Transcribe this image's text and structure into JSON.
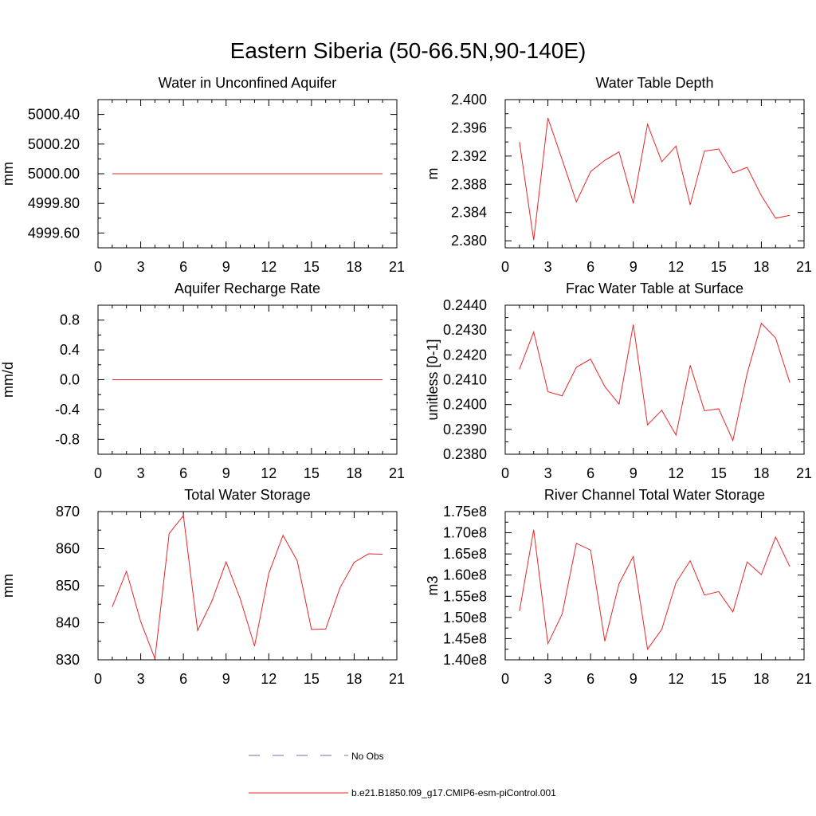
{
  "figure": {
    "title": "Eastern Siberia (50-66.5N,90-140E)"
  },
  "legend": {
    "entries": [
      {
        "label": "No Obs",
        "color": "#6f6fb8",
        "style": "dashed"
      },
      {
        "label": "b.e21.B1850.f09_g17.CMIP6-esm-piControl.001",
        "color": "#e8262a",
        "style": "solid"
      }
    ]
  },
  "colors": {
    "model": "#e8262a",
    "obs": "#6f6fb8"
  },
  "chart_data": [
    {
      "type": "line",
      "title": "Water in Unconfined Aquifer",
      "ylabel": "mm",
      "xlim": [
        0,
        21
      ],
      "ylim": [
        4999.5,
        5000.5
      ],
      "xticks": [
        0,
        3,
        6,
        9,
        12,
        15,
        18,
        21
      ],
      "yticks": [
        4999.6,
        4999.8,
        5000.0,
        5000.2,
        5000.4
      ],
      "ytick_labels": [
        "4999.60",
        "4999.80",
        "5000.00",
        "5000.20",
        "5000.40"
      ],
      "series": [
        {
          "name": "b.e21.B1850.f09_g17.CMIP6-esm-piControl.001",
          "x": [
            1,
            2,
            3,
            4,
            5,
            6,
            7,
            8,
            9,
            10,
            11,
            12,
            13,
            14,
            15,
            16,
            17,
            18,
            19,
            20
          ],
          "y": [
            5000,
            5000,
            5000,
            5000,
            5000,
            5000,
            5000,
            5000,
            5000,
            5000,
            5000,
            5000,
            5000,
            5000,
            5000,
            5000,
            5000,
            5000,
            5000,
            5000
          ]
        }
      ]
    },
    {
      "type": "line",
      "title": "Water Table Depth",
      "ylabel": "m",
      "xlim": [
        0,
        21
      ],
      "ylim": [
        2.379,
        2.4
      ],
      "xticks": [
        0,
        3,
        6,
        9,
        12,
        15,
        18,
        21
      ],
      "yticks": [
        2.38,
        2.384,
        2.388,
        2.392,
        2.396,
        2.4
      ],
      "ytick_labels": [
        "2.380",
        "2.384",
        "2.388",
        "2.392",
        "2.396",
        "2.400"
      ],
      "series": [
        {
          "name": "b.e21.B1850.f09_g17.CMIP6-esm-piControl.001",
          "x": [
            1,
            2,
            3,
            4,
            5,
            6,
            7,
            8,
            9,
            10,
            11,
            12,
            13,
            14,
            15,
            16,
            17,
            18,
            19,
            20
          ],
          "y": [
            2.394,
            2.3801,
            2.3974,
            2.3915,
            2.3855,
            2.3898,
            2.3914,
            2.3926,
            2.3853,
            2.3965,
            2.3912,
            2.3934,
            2.3851,
            2.3927,
            2.393,
            2.3896,
            2.3904,
            2.3864,
            2.3832,
            2.3836
          ]
        }
      ]
    },
    {
      "type": "line",
      "title": "Aquifer Recharge Rate",
      "ylabel": "mm/d",
      "xlim": [
        0,
        21
      ],
      "ylim": [
        -1.0,
        1.0
      ],
      "xticks": [
        0,
        3,
        6,
        9,
        12,
        15,
        18,
        21
      ],
      "yticks": [
        -0.8,
        -0.4,
        0.0,
        0.4,
        0.8
      ],
      "ytick_labels": [
        "-0.8",
        "-0.4",
        "0.0",
        "0.4",
        "0.8"
      ],
      "series": [
        {
          "name": "b.e21.B1850.f09_g17.CMIP6-esm-piControl.001",
          "x": [
            1,
            2,
            3,
            4,
            5,
            6,
            7,
            8,
            9,
            10,
            11,
            12,
            13,
            14,
            15,
            16,
            17,
            18,
            19,
            20
          ],
          "y": [
            0,
            0,
            0,
            0,
            0,
            0,
            0,
            0,
            0,
            0,
            0,
            0,
            0,
            0,
            0,
            0,
            0,
            0,
            0,
            0
          ]
        }
      ]
    },
    {
      "type": "line",
      "title": "Frac Water Table at Surface",
      "ylabel": "unitless [0-1]",
      "xlim": [
        0,
        21
      ],
      "ylim": [
        0.238,
        0.244
      ],
      "xticks": [
        0,
        3,
        6,
        9,
        12,
        15,
        18,
        21
      ],
      "yticks": [
        0.238,
        0.239,
        0.24,
        0.241,
        0.242,
        0.243,
        0.244
      ],
      "ytick_labels": [
        "0.2380",
        "0.2390",
        "0.2400",
        "0.2410",
        "0.2420",
        "0.2430",
        "0.2440"
      ],
      "series": [
        {
          "name": "b.e21.B1850.f09_g17.CMIP6-esm-piControl.001",
          "x": [
            1,
            2,
            3,
            4,
            5,
            6,
            7,
            8,
            9,
            10,
            11,
            12,
            13,
            14,
            15,
            16,
            17,
            18,
            19,
            20
          ],
          "y": [
            0.24142,
            0.24292,
            0.24052,
            0.24035,
            0.2415,
            0.24183,
            0.24072,
            0.24002,
            0.24322,
            0.23918,
            0.23977,
            0.23877,
            0.24158,
            0.23975,
            0.23983,
            0.23855,
            0.24125,
            0.24327,
            0.24268,
            0.24088
          ]
        }
      ]
    },
    {
      "type": "line",
      "title": "Total Water Storage",
      "ylabel": "mm",
      "xlim": [
        0,
        21
      ],
      "ylim": [
        830,
        870
      ],
      "xticks": [
        0,
        3,
        6,
        9,
        12,
        15,
        18,
        21
      ],
      "yticks": [
        830,
        840,
        850,
        860,
        870
      ],
      "ytick_labels": [
        "830",
        "840",
        "850",
        "860",
        "870"
      ],
      "series": [
        {
          "name": "b.e21.B1850.f09_g17.CMIP6-esm-piControl.001",
          "x": [
            1,
            2,
            3,
            4,
            5,
            6,
            7,
            8,
            9,
            10,
            11,
            12,
            13,
            14,
            15,
            16,
            17,
            18,
            19,
            20
          ],
          "y": [
            844.3,
            853.9,
            840.3,
            830.3,
            864.1,
            868.9,
            837.9,
            845.8,
            856.4,
            846.4,
            833.7,
            853.3,
            863.6,
            856.7,
            838.2,
            838.3,
            849.4,
            856.3,
            858.6,
            858.5
          ]
        }
      ]
    },
    {
      "type": "line",
      "title": "River Channel Total Water Storage",
      "ylabel": "m3",
      "xlim": [
        0,
        21
      ],
      "ylim": [
        140000000,
        175000000
      ],
      "xticks": [
        0,
        3,
        6,
        9,
        12,
        15,
        18,
        21
      ],
      "yticks": [
        140000000,
        145000000,
        150000000,
        155000000,
        160000000,
        165000000,
        170000000,
        175000000
      ],
      "ytick_labels": [
        "1.40e8",
        "1.45e8",
        "1.50e8",
        "1.55e8",
        "1.60e8",
        "1.65e8",
        "1.70e8",
        "1.75e8"
      ],
      "series": [
        {
          "name": "b.e21.B1850.f09_g17.CMIP6-esm-piControl.001",
          "x": [
            1,
            2,
            3,
            4,
            5,
            6,
            7,
            8,
            9,
            10,
            11,
            12,
            13,
            14,
            15,
            16,
            17,
            18,
            19,
            20
          ],
          "y": [
            151500000,
            170700000,
            143800000,
            150800000,
            167500000,
            165900000,
            144400000,
            158000000,
            164400000,
            142500000,
            147200000,
            158200000,
            163400000,
            155300000,
            156100000,
            151300000,
            163100000,
            160100000,
            169000000,
            162000000
          ]
        }
      ]
    }
  ]
}
